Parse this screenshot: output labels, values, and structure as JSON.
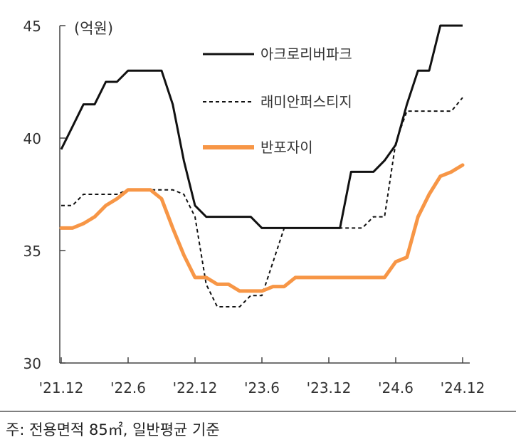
{
  "chart_data": {
    "type": "line",
    "ylabel": "(억원)",
    "ylim": [
      30,
      45
    ],
    "yticks": [
      30,
      35,
      40,
      45
    ],
    "x_tick_labels": [
      "'21.12",
      "'22.6",
      "'22.12",
      "'23.6",
      "'23.12",
      "'24.6",
      "'24.12"
    ],
    "x_start_month": "2021-12",
    "x_end_month": "2024-12",
    "num_points": 37,
    "grid": false,
    "legend_position": "top-right",
    "series": [
      {
        "name": "아크로리버파크",
        "color": "#111111",
        "style": "solid",
        "values": [
          39.5,
          40.5,
          41.5,
          41.5,
          42.5,
          42.5,
          43,
          43,
          43,
          43,
          41.5,
          39,
          37,
          36.5,
          36.5,
          36.5,
          36.5,
          36.5,
          36,
          36,
          36,
          36,
          36,
          36,
          36,
          36,
          38.5,
          38.5,
          38.5,
          39,
          39.7,
          41.5,
          43,
          43,
          45,
          45,
          45
        ]
      },
      {
        "name": "래미안퍼스티지",
        "color": "#111111",
        "style": "dashed",
        "values": [
          37,
          37,
          37.5,
          37.5,
          37.5,
          37.5,
          37.7,
          37.7,
          37.7,
          37.7,
          37.7,
          37.5,
          36.5,
          33.5,
          32.5,
          32.5,
          32.5,
          33,
          33,
          34.5,
          36,
          36,
          36,
          36,
          36,
          36,
          36,
          36,
          36.5,
          36.5,
          39.8,
          41.2,
          41.2,
          41.2,
          41.2,
          41.2,
          41.8
        ]
      },
      {
        "name": "반포자이",
        "color": "#F79646",
        "style": "solid",
        "values": [
          36,
          36,
          36.2,
          36.5,
          37,
          37.3,
          37.7,
          37.7,
          37.7,
          37.3,
          36,
          34.8,
          33.8,
          33.8,
          33.5,
          33.5,
          33.2,
          33.2,
          33.2,
          33.4,
          33.4,
          33.8,
          33.8,
          33.8,
          33.8,
          33.8,
          33.8,
          33.8,
          33.8,
          33.8,
          34.5,
          34.7,
          36.5,
          37.5,
          38.3,
          38.5,
          38.8
        ]
      }
    ]
  },
  "footnote": "주: 전용면적 85㎡, 일반평균 기준"
}
